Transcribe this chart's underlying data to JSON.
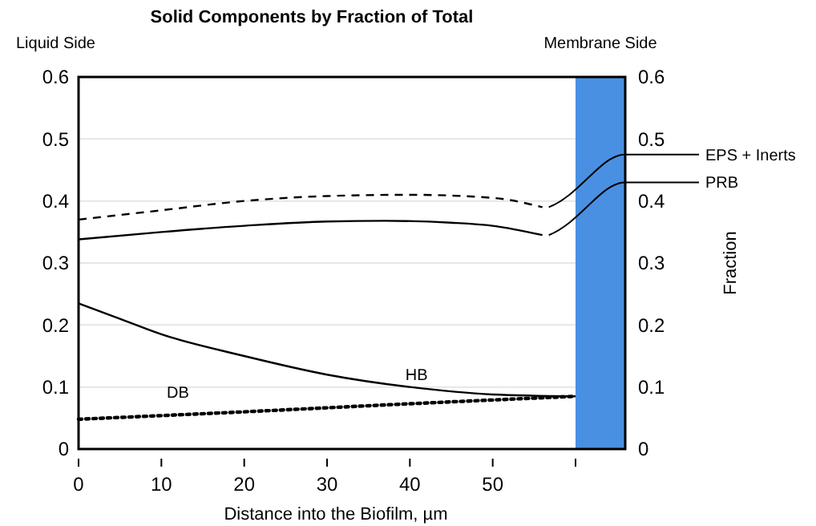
{
  "chart_data": {
    "type": "line",
    "title": "Solid Components by Fraction of Total",
    "xlabel": "Distance into the Biofilm, µm",
    "y2label": "Fraction",
    "annotations": [
      "Liquid Side"
    ],
    "xlim": [
      0,
      66
    ],
    "xticks": [
      0,
      10,
      20,
      30,
      40,
      50,
      {
        "value": 60,
        "label": null
      }
    ],
    "ylim": [
      0,
      0.6
    ],
    "yticks": [
      0,
      0.1,
      0.2,
      0.3,
      0.4,
      0.5,
      0.6
    ],
    "y2lim": [
      0,
      0.6
    ],
    "y2ticks": [
      0,
      0.1,
      0.2,
      0.3,
      0.4,
      0.5,
      0.6
    ],
    "grid": "y",
    "bands": [
      {
        "axis": "x",
        "from": 60,
        "to": 66,
        "label": "Membrane Side",
        "color": "#4a90e2"
      }
    ],
    "series": [
      {
        "name": "EPS + Inerts",
        "color": "#000000",
        "line_style": "dashed",
        "x": [
          0,
          10,
          20,
          30,
          40,
          50,
          56
        ],
        "values": [
          0.37,
          0.385,
          0.4,
          0.408,
          0.41,
          0.405,
          0.39
        ]
      },
      {
        "name": "PRB",
        "color": "#000000",
        "line_style": "solid",
        "x": [
          0,
          10,
          20,
          30,
          37,
          45,
          50,
          56
        ],
        "values": [
          0.338,
          0.35,
          0.36,
          0.367,
          0.368,
          0.365,
          0.36,
          0.345
        ]
      },
      {
        "name": "HB",
        "color": "#000000",
        "line_style": "solid",
        "x": [
          0,
          5,
          10,
          20,
          30,
          40,
          50,
          60
        ],
        "values": [
          0.235,
          0.21,
          0.185,
          0.15,
          0.12,
          0.1,
          0.088,
          0.085
        ]
      },
      {
        "name": "DB",
        "color": "#000000",
        "line_style": "dotted",
        "x": [
          0,
          20,
          40,
          60
        ],
        "values": [
          0.048,
          0.06,
          0.073,
          0.085
        ]
      }
    ]
  }
}
